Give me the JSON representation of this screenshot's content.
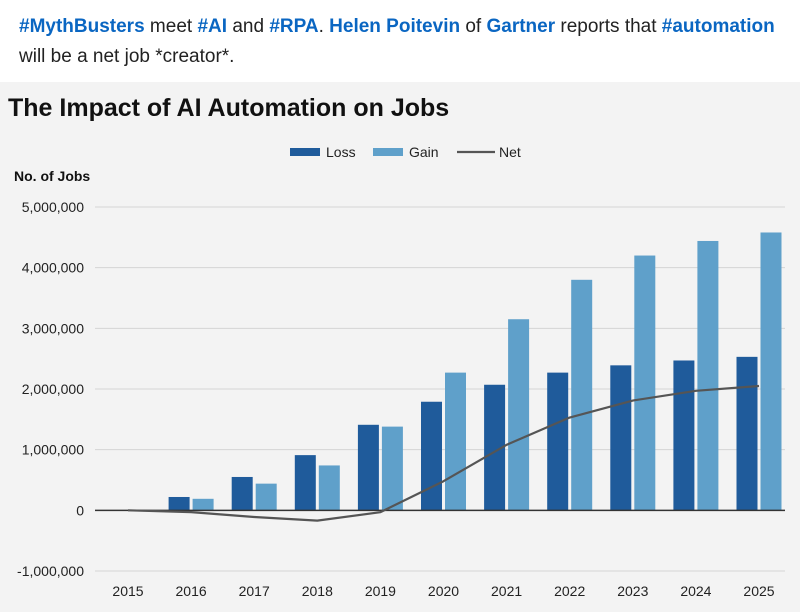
{
  "post": {
    "segments": [
      {
        "text": "#MythBusters",
        "style": "tag"
      },
      {
        "text": " meet ",
        "style": "plain"
      },
      {
        "text": "#AI",
        "style": "tag"
      },
      {
        "text": " and ",
        "style": "plain"
      },
      {
        "text": "#RPA",
        "style": "tag"
      },
      {
        "text": ".  ",
        "style": "plain"
      },
      {
        "text": "Helen Poitevin",
        "style": "mention"
      },
      {
        "text": " of ",
        "style": "plain"
      },
      {
        "text": "Gartner",
        "style": "mention"
      },
      {
        "text": " reports that ",
        "style": "plain"
      },
      {
        "text": "#automation",
        "style": "tag"
      },
      {
        "text": " will be a net job *creator*.",
        "style": "plain"
      }
    ]
  },
  "colors": {
    "loss": "#1f5b9b",
    "gain": "#5fa0ca",
    "net": "#555555",
    "gridline": "#d4d4d4",
    "zero_line": "#333333",
    "hashtag": "#0a66c2"
  },
  "chart_data": {
    "type": "bar",
    "title": "The Impact of AI Automation on Jobs",
    "xlabel": "",
    "ylabel": "No. of Jobs",
    "categories": [
      "2015",
      "2016",
      "2017",
      "2018",
      "2019",
      "2020",
      "2021",
      "2022",
      "2023",
      "2024",
      "2025"
    ],
    "series": [
      {
        "name": "Loss",
        "kind": "bar",
        "values": [
          0,
          220000,
          550000,
          910000,
          1410000,
          1790000,
          2070000,
          2270000,
          2390000,
          2470000,
          2530000
        ]
      },
      {
        "name": "Gain",
        "kind": "bar",
        "values": [
          0,
          190000,
          440000,
          740000,
          1380000,
          2270000,
          3150000,
          3800000,
          4200000,
          4440000,
          4580000
        ]
      },
      {
        "name": "Net",
        "kind": "line",
        "values": [
          0,
          -30000,
          -110000,
          -170000,
          -30000,
          480000,
          1080000,
          1530000,
          1810000,
          1970000,
          2050000
        ]
      }
    ],
    "ylim": [
      -1000000,
      5000000
    ],
    "yticks": [
      -1000000,
      0,
      1000000,
      2000000,
      3000000,
      4000000,
      5000000
    ],
    "ytick_labels": [
      "-1,000,000",
      "0",
      "1,000,000",
      "2,000,000",
      "3,000,000",
      "4,000,000",
      "5,000,000"
    ],
    "grid": true,
    "legend_position": "top-center"
  }
}
